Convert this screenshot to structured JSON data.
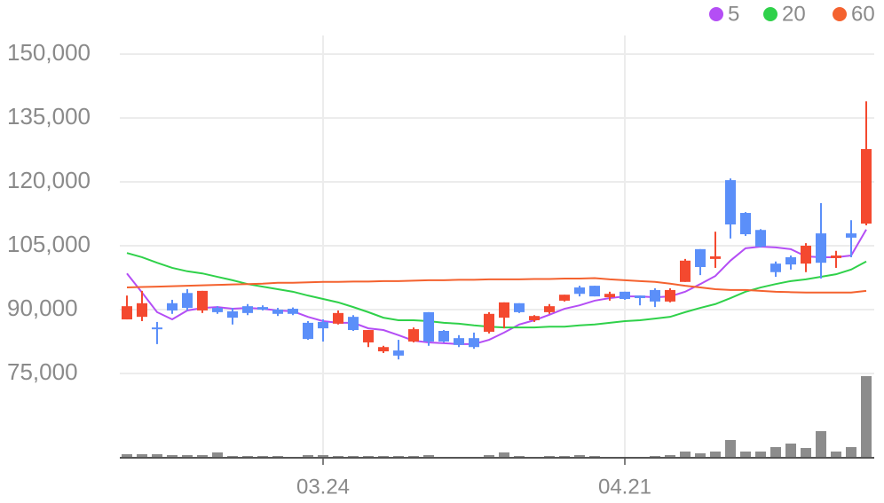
{
  "chart_data": {
    "type": "candlestick",
    "categories": [
      null,
      null,
      null,
      null,
      null,
      null,
      null,
      null,
      null,
      null,
      null,
      null,
      null,
      "03.24",
      null,
      null,
      null,
      null,
      null,
      null,
      null,
      null,
      null,
      null,
      null,
      null,
      null,
      null,
      null,
      null,
      null,
      null,
      null,
      "04.21",
      null,
      null,
      null,
      null,
      null,
      null,
      null,
      null,
      null,
      null,
      null,
      null,
      null,
      null,
      null,
      null
    ],
    "open": [
      87700,
      88300,
      85800,
      91500,
      93900,
      89800,
      90400,
      89600,
      90800,
      90600,
      90000,
      90200,
      86900,
      87100,
      86700,
      88300,
      82300,
      80200,
      80400,
      82500,
      89400,
      85000,
      83300,
      83300,
      84800,
      88100,
      91500,
      87500,
      89400,
      92100,
      95200,
      95600,
      92900,
      94200,
      93300,
      94600,
      91900,
      96500,
      104200,
      101900,
      120400,
      112700,
      108700,
      100800,
      102300,
      100800,
      107900,
      102100,
      107900,
      110200
    ],
    "high": [
      93300,
      94400,
      87100,
      92300,
      94800,
      94400,
      90800,
      90400,
      91300,
      91000,
      90400,
      90500,
      87300,
      87700,
      89800,
      88700,
      85200,
      81500,
      82900,
      85800,
      89400,
      85200,
      84000,
      84600,
      89400,
      91700,
      91500,
      88700,
      91300,
      93500,
      95600,
      95600,
      94200,
      94200,
      93300,
      95000,
      95000,
      101900,
      104200,
      108300,
      120800,
      112900,
      108900,
      101300,
      102700,
      105600,
      115000,
      103800,
      111000,
      138900
    ],
    "low": [
      87700,
      87300,
      81900,
      89000,
      89800,
      89200,
      89000,
      86500,
      88700,
      89800,
      88500,
      88700,
      82900,
      82500,
      86500,
      85000,
      81200,
      79800,
      78300,
      82300,
      81500,
      82300,
      81200,
      80800,
      84400,
      85600,
      89200,
      87100,
      89000,
      91900,
      93100,
      93100,
      92100,
      92300,
      91000,
      90600,
      91700,
      96500,
      98100,
      99800,
      106700,
      107300,
      104600,
      97700,
      99400,
      98800,
      97300,
      99800,
      102300,
      109800
    ],
    "close": [
      90800,
      91500,
      85400,
      89800,
      90400,
      94400,
      89400,
      88100,
      89200,
      90000,
      89000,
      89000,
      83100,
      85600,
      89200,
      85200,
      85200,
      81200,
      79200,
      85400,
      82500,
      82500,
      81700,
      81200,
      89000,
      91700,
      89400,
      88500,
      90800,
      93500,
      93700,
      93100,
      93700,
      92500,
      92700,
      91900,
      94600,
      101500,
      100000,
      102500,
      110000,
      107700,
      104800,
      98800,
      100600,
      105000,
      101000,
      102700,
      106900,
      127700
    ],
    "volume": [
      4,
      4,
      4,
      3,
      3,
      3,
      6,
      2,
      2,
      2,
      2,
      1,
      3,
      3,
      2,
      2,
      2,
      2,
      2,
      2,
      3,
      1,
      1,
      1,
      3,
      6,
      2,
      1,
      2,
      2,
      3,
      2,
      1,
      1,
      1,
      2,
      3,
      7,
      5,
      7,
      20,
      7,
      7,
      12,
      16,
      11,
      30,
      7,
      12,
      92
    ],
    "up_color": "#f4492f",
    "down_color": "#5b8ff9",
    "volume_color": "#8c8c8c",
    "series": [
      {
        "name": "5",
        "color": "#b44ef5",
        "values": [
          98500,
          94000,
          89400,
          87700,
          89800,
          90400,
          90600,
          90200,
          90400,
          90200,
          89800,
          89600,
          88300,
          87300,
          86900,
          86900,
          85600,
          85200,
          84000,
          82700,
          82300,
          82100,
          81900,
          81900,
          82900,
          84600,
          86500,
          87500,
          88800,
          90200,
          91000,
          92100,
          92700,
          93100,
          93100,
          92900,
          93100,
          94200,
          96000,
          97900,
          101500,
          104400,
          104800,
          104600,
          104200,
          102500,
          102300,
          102300,
          102700,
          108800
        ]
      },
      {
        "name": "20",
        "color": "#2fd14a",
        "values": [
          103300,
          102300,
          101000,
          99800,
          99000,
          98500,
          97700,
          96900,
          96000,
          95400,
          94800,
          94200,
          93300,
          92500,
          91700,
          90600,
          89400,
          88100,
          87500,
          87500,
          87300,
          86900,
          86700,
          86300,
          86000,
          85800,
          85800,
          85800,
          86000,
          86000,
          86300,
          86500,
          86900,
          87300,
          87500,
          87900,
          88300,
          89400,
          90400,
          91300,
          92700,
          94200,
          95200,
          96000,
          96700,
          97100,
          97700,
          98300,
          99400,
          101300
        ]
      },
      {
        "name": "60",
        "color": "#f4622f",
        "values": [
          95200,
          95300,
          95400,
          95500,
          95600,
          95700,
          95800,
          95900,
          96000,
          96100,
          96300,
          96300,
          96400,
          96500,
          96500,
          96600,
          96600,
          96700,
          96700,
          96800,
          96900,
          96900,
          97000,
          97000,
          97100,
          97100,
          97100,
          97200,
          97200,
          97300,
          97300,
          97400,
          97100,
          96900,
          96700,
          96500,
          96100,
          95600,
          95200,
          94800,
          94600,
          94600,
          94400,
          94200,
          94100,
          94000,
          94000,
          94000,
          94000,
          94400
        ]
      }
    ],
    "ylim": [
      75000,
      150000
    ],
    "yticks": [
      {
        "value": 75000,
        "label": "75,000"
      },
      {
        "value": 90000,
        "label": "90,000"
      },
      {
        "value": 105000,
        "label": "105,000"
      },
      {
        "value": 120000,
        "label": "120,000"
      },
      {
        "value": 135000,
        "label": "135,000"
      },
      {
        "value": 150000,
        "label": "150,000"
      }
    ],
    "grid": true
  }
}
